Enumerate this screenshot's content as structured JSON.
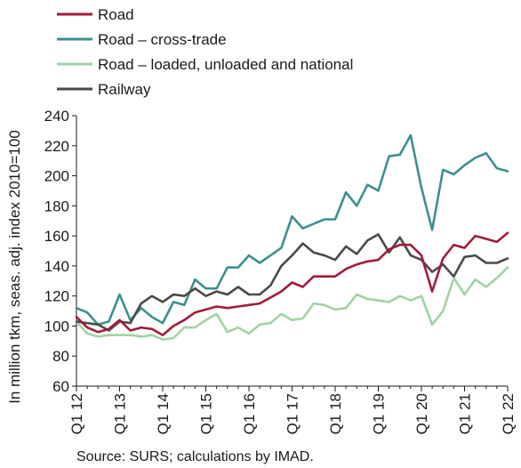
{
  "chart_data": {
    "type": "line",
    "title": "",
    "ylabel": "In million tkm, seas. adj. index 2010=100",
    "xlabel": "",
    "ylim": [
      60,
      240
    ],
    "yticks": [
      60,
      80,
      100,
      120,
      140,
      160,
      180,
      200,
      220,
      240
    ],
    "grid": false,
    "legend_position": "top-left",
    "x": [
      "Q1 12",
      "Q2 12",
      "Q3 12",
      "Q4 12",
      "Q1 13",
      "Q2 13",
      "Q3 13",
      "Q4 13",
      "Q1 14",
      "Q2 14",
      "Q3 14",
      "Q4 14",
      "Q1 15",
      "Q2 15",
      "Q3 15",
      "Q4 15",
      "Q1 16",
      "Q2 16",
      "Q3 16",
      "Q4 16",
      "Q1 17",
      "Q2 17",
      "Q3 17",
      "Q4 17",
      "Q1 18",
      "Q2 18",
      "Q3 18",
      "Q4 18",
      "Q1 19",
      "Q2 19",
      "Q3 19",
      "Q4 19",
      "Q1 20",
      "Q2 20",
      "Q3 20",
      "Q4 20",
      "Q1 21",
      "Q2 21",
      "Q3 21",
      "Q4 21",
      "Q1 22"
    ],
    "xtick_labels": [
      "Q1 12",
      "Q1 13",
      "Q1 14",
      "Q1 15",
      "Q1 16",
      "Q1 17",
      "Q1 18",
      "Q1 19",
      "Q1 20",
      "Q1 21",
      "Q1 22"
    ],
    "series": [
      {
        "name": "Road",
        "color": "#a01c3a",
        "values": [
          106,
          99,
          96,
          98,
          104,
          97,
          99,
          98,
          94,
          100,
          104,
          109,
          111,
          113,
          112,
          113,
          114,
          115,
          119,
          123,
          129,
          126,
          133,
          133,
          133,
          138,
          141,
          143,
          144,
          151,
          154,
          154,
          147,
          123,
          145,
          154,
          152,
          160,
          158,
          156,
          162
        ]
      },
      {
        "name": "Road – cross-trade",
        "color": "#3d8f91",
        "values": [
          112,
          109,
          101,
          103,
          121,
          104,
          112,
          106,
          102,
          116,
          114,
          131,
          125,
          125,
          139,
          139,
          147,
          142,
          147,
          152,
          173,
          165,
          168,
          171,
          171,
          189,
          180,
          194,
          190,
          213,
          214,
          227,
          192,
          164,
          204,
          201,
          207,
          212,
          215,
          205,
          203
        ]
      },
      {
        "name": "Road – loaded, unloaded and national",
        "color": "#9fd4a3",
        "values": [
          103,
          95,
          93,
          94,
          94,
          94,
          93,
          94,
          91,
          92,
          99,
          99,
          104,
          108,
          96,
          99,
          95,
          101,
          102,
          108,
          104,
          105,
          115,
          114,
          111,
          112,
          121,
          118,
          117,
          116,
          120,
          117,
          120,
          101,
          110,
          132,
          121,
          131,
          126,
          132,
          139
        ]
      },
      {
        "name": "Railway",
        "color": "#4a4a4a",
        "values": [
          103,
          102,
          101,
          97,
          103,
          102,
          115,
          120,
          116,
          121,
          120,
          125,
          120,
          123,
          121,
          126,
          121,
          121,
          127,
          140,
          147,
          155,
          149,
          147,
          144,
          153,
          148,
          157,
          161,
          149,
          159,
          147,
          144,
          136,
          141,
          133,
          146,
          147,
          142,
          142,
          145
        ]
      }
    ]
  },
  "source_note": "Source: SURS; calculations by IMAD.",
  "colors": {
    "axis": "#1a1a1a",
    "text": "#1a1a1a"
  }
}
